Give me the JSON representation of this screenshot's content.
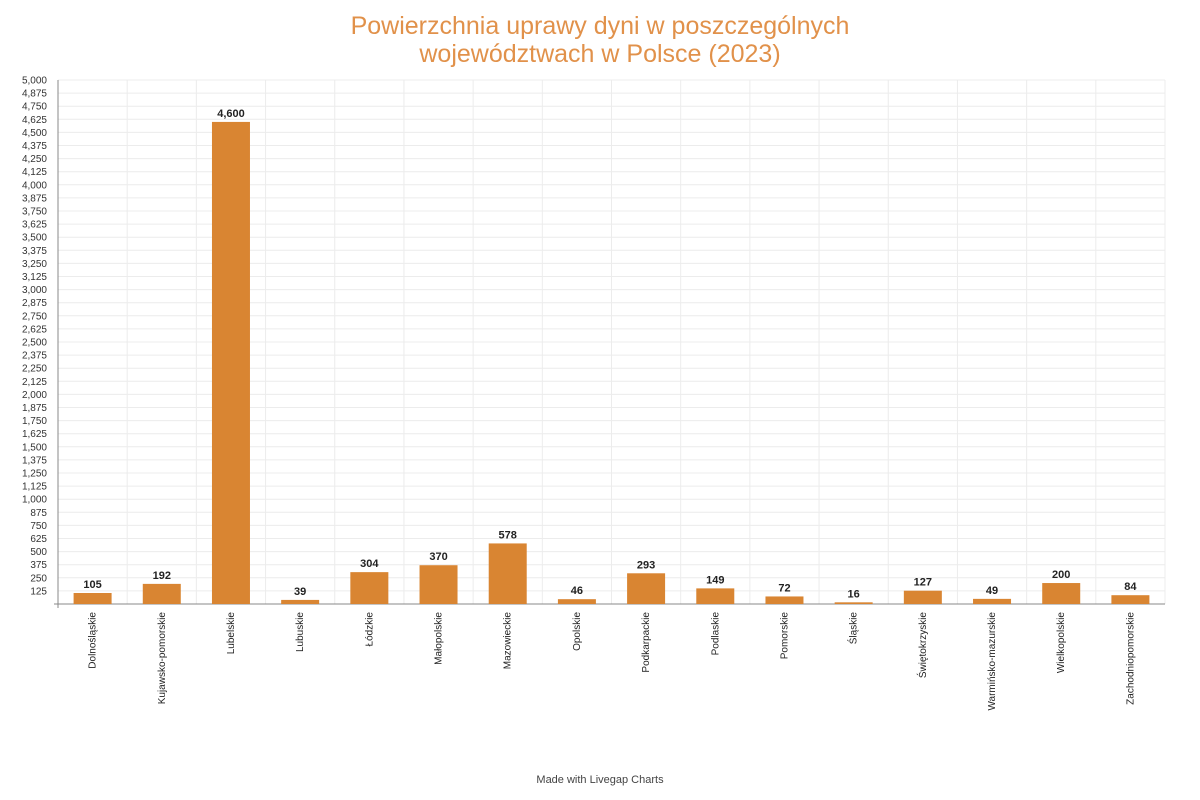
{
  "chart_data": {
    "type": "bar",
    "title_lines": [
      "Powierzchnia uprawy dyni w poszczególnych",
      "województwach w Polsce (2023)"
    ],
    "xlabel": "",
    "ylabel": "",
    "ylim": [
      0,
      5000
    ],
    "y_tick_step": 125,
    "grid": true,
    "bar_color": "#d98532",
    "title_color": "#e1914a",
    "categories": [
      "Dolnośląskie",
      "Kujawsko-pomorskie",
      "Lubelskie",
      "Lubuskie",
      "Łódzkie",
      "Małopolskie",
      "Mazowieckie",
      "Opolskie",
      "Podkarpackie",
      "Podlaskie",
      "Pomorskie",
      "Śląskie",
      "Świętokrzyskie",
      "Warmińsko-mazurskie",
      "Wielkopolskie",
      "Zachodniopomorskie"
    ],
    "values": [
      105,
      192,
      4600,
      39,
      304,
      370,
      578,
      46,
      293,
      149,
      72,
      16,
      127,
      49,
      200,
      84
    ]
  },
  "footer": "Made with Livegap Charts"
}
